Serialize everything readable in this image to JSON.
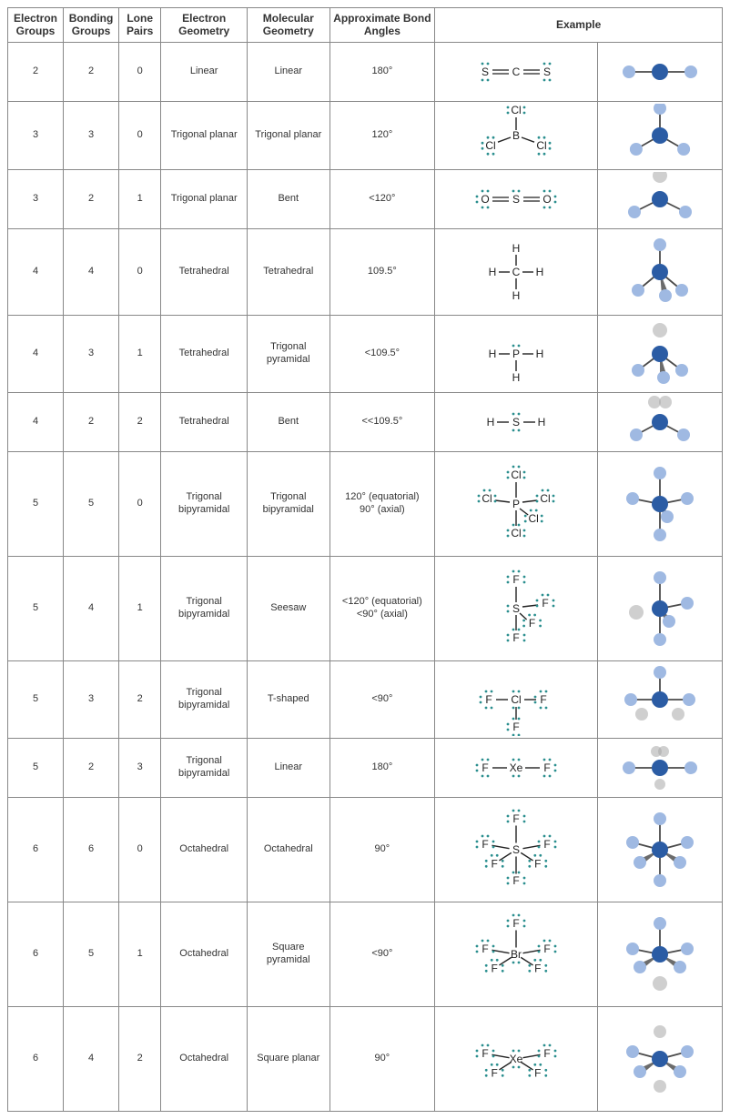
{
  "headers": {
    "electron_groups": "Electron Groups",
    "bonding_groups": "Bonding Groups",
    "lone_pairs": "Lone Pairs",
    "electron_geometry": "Electron Geometry",
    "molecular_geometry": "Molecular Geometry",
    "bond_angles": "Approximate Bond Angles",
    "example": "Example"
  },
  "colors": {
    "border": "#888888",
    "text": "#333333",
    "lone_pair_dot": "#2b8f8f",
    "center_atom": "#2b5ca4",
    "outer_atom": "#9fb9e2",
    "lone_gray": "#a8a8a8"
  },
  "rows": [
    {
      "eg": "2",
      "bg": "2",
      "lp": "0",
      "egeo": "Linear",
      "mgeo": "Linear",
      "angle": "180°",
      "lewis": "SCS_linear",
      "model": "linear",
      "h": 40
    },
    {
      "eg": "3",
      "bg": "3",
      "lp": "0",
      "egeo": "Trigonal planar",
      "mgeo": "Trigonal planar",
      "angle": "120°",
      "lewis": "BCl3",
      "model": "trigonal_planar",
      "h": 70
    },
    {
      "eg": "3",
      "bg": "2",
      "lp": "1",
      "egeo": "Trigonal planar",
      "mgeo": "Bent",
      "angle": "<120°",
      "lewis": "SO2",
      "model": "bent_tp",
      "h": 46
    },
    {
      "eg": "4",
      "bg": "4",
      "lp": "0",
      "egeo": "Tetrahedral",
      "mgeo": "Tetrahedral",
      "angle": "109.5°",
      "lewis": "CH4",
      "model": "tetra",
      "h": 90
    },
    {
      "eg": "4",
      "bg": "3",
      "lp": "1",
      "egeo": "Tetrahedral",
      "mgeo": "Trigonal pyramidal",
      "angle": "<109.5°",
      "lewis": "PH3",
      "model": "trig_pyr",
      "h": 80
    },
    {
      "eg": "4",
      "bg": "2",
      "lp": "2",
      "egeo": "Tetrahedral",
      "mgeo": "Bent",
      "angle": "<<109.5°",
      "lewis": "H2S",
      "model": "bent_t",
      "h": 48
    },
    {
      "eg": "5",
      "bg": "5",
      "lp": "0",
      "egeo": "Trigonal bipyramidal",
      "mgeo": "Trigonal bipyramidal",
      "angle": "120° (equatorial)\n90° (axial)",
      "lewis": "PCl5",
      "model": "tbp",
      "h": 110
    },
    {
      "eg": "5",
      "bg": "4",
      "lp": "1",
      "egeo": "Trigonal bipyramidal",
      "mgeo": "Seesaw",
      "angle": "<120° (equatorial)\n<90° (axial)",
      "lewis": "SF4",
      "model": "seesaw",
      "h": 110
    },
    {
      "eg": "5",
      "bg": "3",
      "lp": "2",
      "egeo": "Trigonal bipyramidal",
      "mgeo": "T-shaped",
      "angle": "<90°",
      "lewis": "ClF3",
      "model": "tshape",
      "h": 80
    },
    {
      "eg": "5",
      "bg": "2",
      "lp": "3",
      "egeo": "Trigonal bipyramidal",
      "mgeo": "Linear",
      "angle": "180°",
      "lewis": "XeF2",
      "model": "linear_tbp",
      "h": 44
    },
    {
      "eg": "6",
      "bg": "6",
      "lp": "0",
      "egeo": "Octahedral",
      "mgeo": "Octahedral",
      "angle": "90°",
      "lewis": "SF6",
      "model": "octa",
      "h": 110
    },
    {
      "eg": "6",
      "bg": "5",
      "lp": "1",
      "egeo": "Octahedral",
      "mgeo": "Square pyramidal",
      "angle": "<90°",
      "lewis": "BrF5",
      "model": "sq_pyr",
      "h": 110
    },
    {
      "eg": "6",
      "bg": "4",
      "lp": "2",
      "egeo": "Octahedral",
      "mgeo": "Square planar",
      "angle": "90°",
      "lewis": "XeF4",
      "model": "sq_planar",
      "h": 110
    }
  ]
}
